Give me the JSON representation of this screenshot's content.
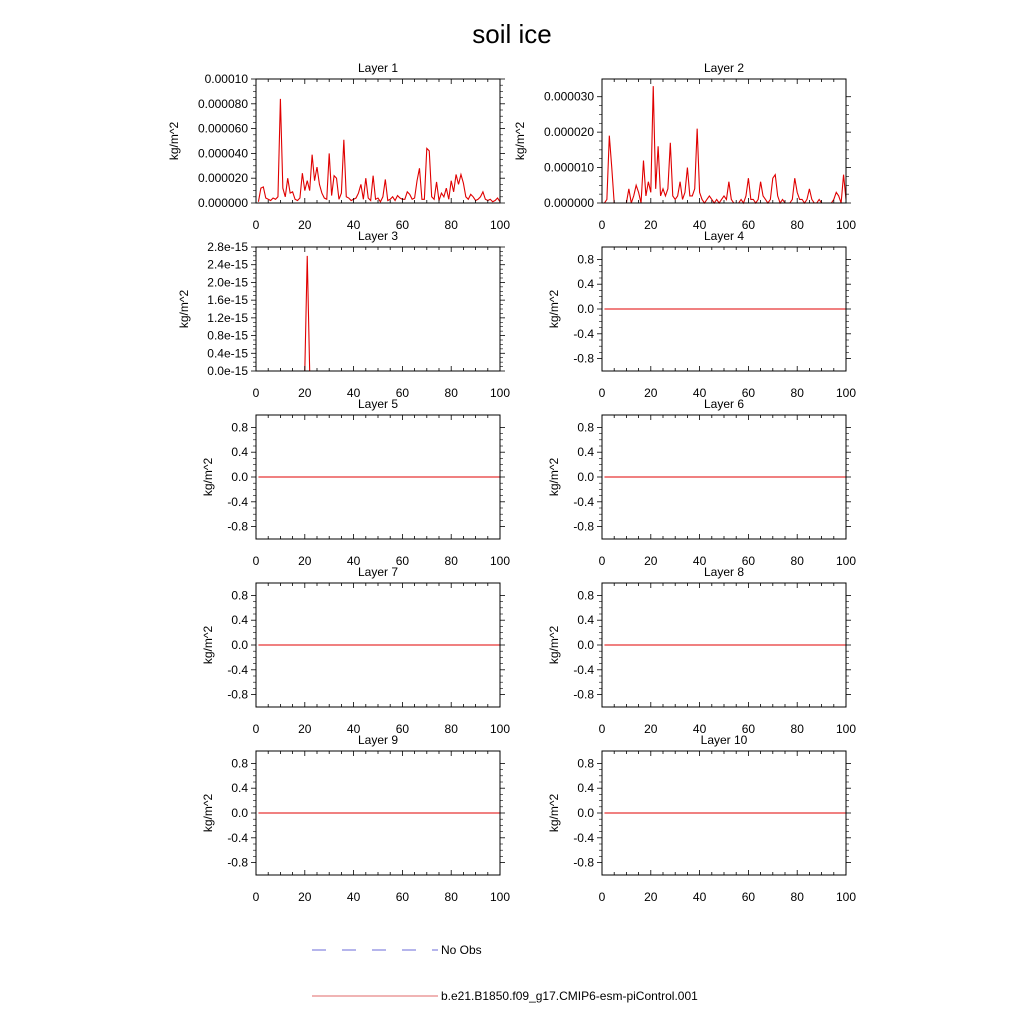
{
  "figure": {
    "title": "soil ice"
  },
  "legend": [
    {
      "label": "No Obs",
      "color": "#6b6bd8",
      "dash": "dashed"
    },
    {
      "label": "b.e21.B1850.f09_g17.CMIP6-esm-piControl.001",
      "color": "#e06868",
      "dash": "solid"
    }
  ],
  "chart_data": [
    {
      "type": "line",
      "title": "Layer 1",
      "xlabel": "",
      "ylabel": "kg/m^2",
      "xlim": [
        0,
        100
      ],
      "ylim": [
        0,
        0.0001
      ],
      "yticks": [
        0,
        2e-05,
        4e-05,
        6e-05,
        8e-05,
        0.0001
      ],
      "ytick_labels": [
        "0.000000",
        "0.000020",
        "0.000040",
        "0.000060",
        "0.000080",
        "0.00010"
      ],
      "xticks": [
        0,
        20,
        40,
        60,
        80,
        100
      ],
      "series": [
        {
          "color": "#e00000",
          "x": [
            1,
            2,
            3,
            4,
            5,
            6,
            7,
            8,
            9,
            10,
            11,
            12,
            13,
            14,
            15,
            16,
            17,
            18,
            19,
            20,
            21,
            22,
            23,
            24,
            25,
            26,
            27,
            28,
            29,
            30,
            31,
            32,
            33,
            34,
            35,
            36,
            37,
            38,
            39,
            40,
            41,
            42,
            43,
            44,
            45,
            46,
            47,
            48,
            49,
            50,
            51,
            52,
            53,
            54,
            55,
            56,
            57,
            58,
            59,
            60,
            61,
            62,
            63,
            64,
            65,
            66,
            67,
            68,
            69,
            70,
            71,
            72,
            73,
            74,
            75,
            76,
            77,
            78,
            79,
            80,
            81,
            82,
            83,
            84,
            85,
            86,
            87,
            88,
            89,
            90,
            91,
            92,
            93,
            94,
            95,
            96,
            97,
            98,
            99,
            100
          ],
          "y": [
            1e-06,
            1.2e-05,
            1.3e-05,
            4e-06,
            3e-06,
            2e-06,
            4e-06,
            3e-06,
            5e-06,
            8.4e-05,
            1.2e-05,
            5e-06,
            2e-05,
            8e-06,
            9e-06,
            3e-06,
            2e-06,
            4e-06,
            2.4e-05,
            1e-05,
            1.8e-05,
            1e-05,
            3.9e-05,
            1.8e-05,
            2.9e-05,
            1.5e-05,
            8e-06,
            4e-06,
            3e-06,
            4e-05,
            6e-06,
            2.2e-05,
            2e-05,
            3e-06,
            8e-06,
            5.1e-05,
            5e-06,
            4e-06,
            2e-06,
            3e-06,
            4e-06,
            8e-06,
            1.5e-05,
            3e-06,
            2e-05,
            4e-06,
            2e-06,
            2.2e-05,
            3e-06,
            4e-06,
            1e-06,
            5e-06,
            1.9e-05,
            2e-06,
            3e-06,
            5e-06,
            2e-06,
            6e-06,
            4e-06,
            3e-06,
            3e-06,
            9e-06,
            7e-06,
            3e-06,
            4e-06,
            1.8e-05,
            2.8e-05,
            3e-06,
            3e-06,
            4.4e-05,
            4.2e-05,
            5e-06,
            3e-06,
            1.7e-05,
            2e-06,
            8e-06,
            5e-06,
            1.2e-05,
            3e-06,
            1.8e-05,
            9e-06,
            2.3e-05,
            1.5e-05,
            2.3e-05,
            1.6e-05,
            5e-06,
            3e-06,
            7e-06,
            5e-06,
            2e-06,
            3e-06,
            5e-06,
            9e-06,
            3e-06,
            2e-06,
            3e-06,
            1e-06,
            2e-06,
            4e-06,
            1e-06
          ]
        }
      ]
    },
    {
      "type": "line",
      "title": "Layer 2",
      "xlabel": "",
      "ylabel": "kg/m^2",
      "xlim": [
        0,
        100
      ],
      "ylim": [
        0,
        3.5e-05
      ],
      "yticks": [
        0,
        1e-05,
        2e-05,
        3e-05
      ],
      "ytick_labels": [
        "0.000000",
        "0.000010",
        "0.000020",
        "0.000030"
      ],
      "xticks": [
        0,
        20,
        40,
        60,
        80,
        100
      ],
      "series": [
        {
          "color": "#e00000",
          "x": [
            1,
            2,
            3,
            4,
            5,
            6,
            7,
            8,
            9,
            10,
            11,
            12,
            13,
            14,
            15,
            16,
            17,
            18,
            19,
            20,
            21,
            22,
            23,
            24,
            25,
            26,
            27,
            28,
            29,
            30,
            31,
            32,
            33,
            34,
            35,
            36,
            37,
            38,
            39,
            40,
            41,
            42,
            43,
            44,
            45,
            46,
            47,
            48,
            49,
            50,
            51,
            52,
            53,
            54,
            55,
            56,
            57,
            58,
            59,
            60,
            61,
            62,
            63,
            64,
            65,
            66,
            67,
            68,
            69,
            70,
            71,
            72,
            73,
            74,
            75,
            76,
            77,
            78,
            79,
            80,
            81,
            82,
            83,
            84,
            85,
            86,
            87,
            88,
            89,
            90,
            91,
            92,
            93,
            94,
            95,
            96,
            97,
            98,
            99,
            100
          ],
          "y": [
            0,
            1e-06,
            1.9e-05,
            1e-05,
            0,
            0,
            0,
            0,
            0,
            0,
            4e-06,
            0,
            2e-06,
            5e-06,
            3e-06,
            0,
            1.2e-05,
            2e-06,
            6e-06,
            3e-06,
            3.3e-05,
            4e-06,
            1.6e-05,
            2e-06,
            4e-06,
            2e-06,
            4e-06,
            1.7e-05,
            2e-06,
            1e-06,
            2e-06,
            6e-06,
            1e-06,
            3e-06,
            1e-05,
            2e-06,
            2e-06,
            4e-06,
            2.1e-05,
            3e-06,
            1e-06,
            0,
            1e-06,
            2e-06,
            1e-06,
            0,
            1e-06,
            0,
            1e-06,
            2e-06,
            1e-06,
            6e-06,
            1e-06,
            0,
            0,
            0,
            1e-06,
            0,
            2e-06,
            7e-06,
            1e-06,
            1e-06,
            0,
            1e-06,
            6e-06,
            2e-06,
            1e-06,
            0,
            1e-06,
            7e-06,
            8e-06,
            2e-06,
            0,
            1e-06,
            0,
            0,
            0,
            1e-06,
            7e-06,
            3e-06,
            1e-06,
            1e-06,
            0,
            1e-06,
            4e-06,
            1e-06,
            0,
            0,
            1e-06,
            0,
            0,
            0,
            0,
            0,
            1e-06,
            3e-06,
            2e-06,
            0,
            8e-06,
            1e-06
          ]
        }
      ]
    },
    {
      "type": "line",
      "title": "Layer 3",
      "xlabel": "",
      "ylabel": "kg/m^2",
      "xlim": [
        0,
        100
      ],
      "ylim": [
        0,
        2.8e-15
      ],
      "yticks": [
        0,
        4e-16,
        8e-16,
        1.2e-15,
        1.6e-15,
        2e-15,
        2.4e-15,
        2.8e-15
      ],
      "ytick_labels": [
        "0.0e-15",
        "0.4e-15",
        "0.8e-15",
        "1.2e-15",
        "1.6e-15",
        "2.0e-15",
        "2.4e-15",
        "2.8e-15"
      ],
      "xticks": [
        0,
        20,
        40,
        60,
        80,
        100
      ],
      "series": [
        {
          "color": "#e00000",
          "x": [
            0,
            20,
            21,
            22,
            100
          ],
          "y": [
            0,
            0,
            2.6e-15,
            0,
            0
          ]
        }
      ]
    },
    {
      "type": "line",
      "title": "Layer 4",
      "xlabel": "",
      "ylabel": "kg/m^2",
      "xlim": [
        0,
        100
      ],
      "ylim": [
        -1,
        1
      ],
      "yticks": [
        -0.8,
        -0.4,
        0,
        0.4,
        0.8
      ],
      "ytick_labels": [
        "-0.8",
        "-0.4",
        "0.0",
        "0.4",
        "0.8"
      ],
      "xticks": [
        0,
        20,
        40,
        60,
        80,
        100
      ],
      "series": [
        {
          "color": "#e00000",
          "x": [
            1,
            100
          ],
          "y": [
            0,
            0
          ]
        }
      ]
    },
    {
      "type": "line",
      "title": "Layer 5",
      "xlabel": "",
      "ylabel": "kg/m^2",
      "xlim": [
        0,
        100
      ],
      "ylim": [
        -1,
        1
      ],
      "yticks": [
        -0.8,
        -0.4,
        0,
        0.4,
        0.8
      ],
      "ytick_labels": [
        "-0.8",
        "-0.4",
        "0.0",
        "0.4",
        "0.8"
      ],
      "xticks": [
        0,
        20,
        40,
        60,
        80,
        100
      ],
      "series": [
        {
          "color": "#e00000",
          "x": [
            1,
            100
          ],
          "y": [
            0,
            0
          ]
        }
      ]
    },
    {
      "type": "line",
      "title": "Layer 6",
      "xlabel": "",
      "ylabel": "kg/m^2",
      "xlim": [
        0,
        100
      ],
      "ylim": [
        -1,
        1
      ],
      "yticks": [
        -0.8,
        -0.4,
        0,
        0.4,
        0.8
      ],
      "ytick_labels": [
        "-0.8",
        "-0.4",
        "0.0",
        "0.4",
        "0.8"
      ],
      "xticks": [
        0,
        20,
        40,
        60,
        80,
        100
      ],
      "series": [
        {
          "color": "#e00000",
          "x": [
            1,
            100
          ],
          "y": [
            0,
            0
          ]
        }
      ]
    },
    {
      "type": "line",
      "title": "Layer 7",
      "xlabel": "",
      "ylabel": "kg/m^2",
      "xlim": [
        0,
        100
      ],
      "ylim": [
        -1,
        1
      ],
      "yticks": [
        -0.8,
        -0.4,
        0,
        0.4,
        0.8
      ],
      "ytick_labels": [
        "-0.8",
        "-0.4",
        "0.0",
        "0.4",
        "0.8"
      ],
      "xticks": [
        0,
        20,
        40,
        60,
        80,
        100
      ],
      "series": [
        {
          "color": "#e00000",
          "x": [
            1,
            100
          ],
          "y": [
            0,
            0
          ]
        }
      ]
    },
    {
      "type": "line",
      "title": "Layer 8",
      "xlabel": "",
      "ylabel": "kg/m^2",
      "xlim": [
        0,
        100
      ],
      "ylim": [
        -1,
        1
      ],
      "yticks": [
        -0.8,
        -0.4,
        0,
        0.4,
        0.8
      ],
      "ytick_labels": [
        "-0.8",
        "-0.4",
        "0.0",
        "0.4",
        "0.8"
      ],
      "xticks": [
        0,
        20,
        40,
        60,
        80,
        100
      ],
      "series": [
        {
          "color": "#e00000",
          "x": [
            1,
            100
          ],
          "y": [
            0,
            0
          ]
        }
      ]
    },
    {
      "type": "line",
      "title": "Layer 9",
      "xlabel": "",
      "ylabel": "kg/m^2",
      "xlim": [
        0,
        100
      ],
      "ylim": [
        -1,
        1
      ],
      "yticks": [
        -0.8,
        -0.4,
        0,
        0.4,
        0.8
      ],
      "ytick_labels": [
        "-0.8",
        "-0.4",
        "0.0",
        "0.4",
        "0.8"
      ],
      "xticks": [
        0,
        20,
        40,
        60,
        80,
        100
      ],
      "series": [
        {
          "color": "#e00000",
          "x": [
            1,
            100
          ],
          "y": [
            0,
            0
          ]
        }
      ]
    },
    {
      "type": "line",
      "title": "Layer 10",
      "xlabel": "",
      "ylabel": "kg/m^2",
      "xlim": [
        0,
        100
      ],
      "ylim": [
        -1,
        1
      ],
      "yticks": [
        -0.8,
        -0.4,
        0,
        0.4,
        0.8
      ],
      "ytick_labels": [
        "-0.8",
        "-0.4",
        "0.0",
        "0.4",
        "0.8"
      ],
      "xticks": [
        0,
        20,
        40,
        60,
        80,
        100
      ],
      "series": [
        {
          "color": "#e00000",
          "x": [
            1,
            100
          ],
          "y": [
            0,
            0
          ]
        }
      ]
    }
  ]
}
